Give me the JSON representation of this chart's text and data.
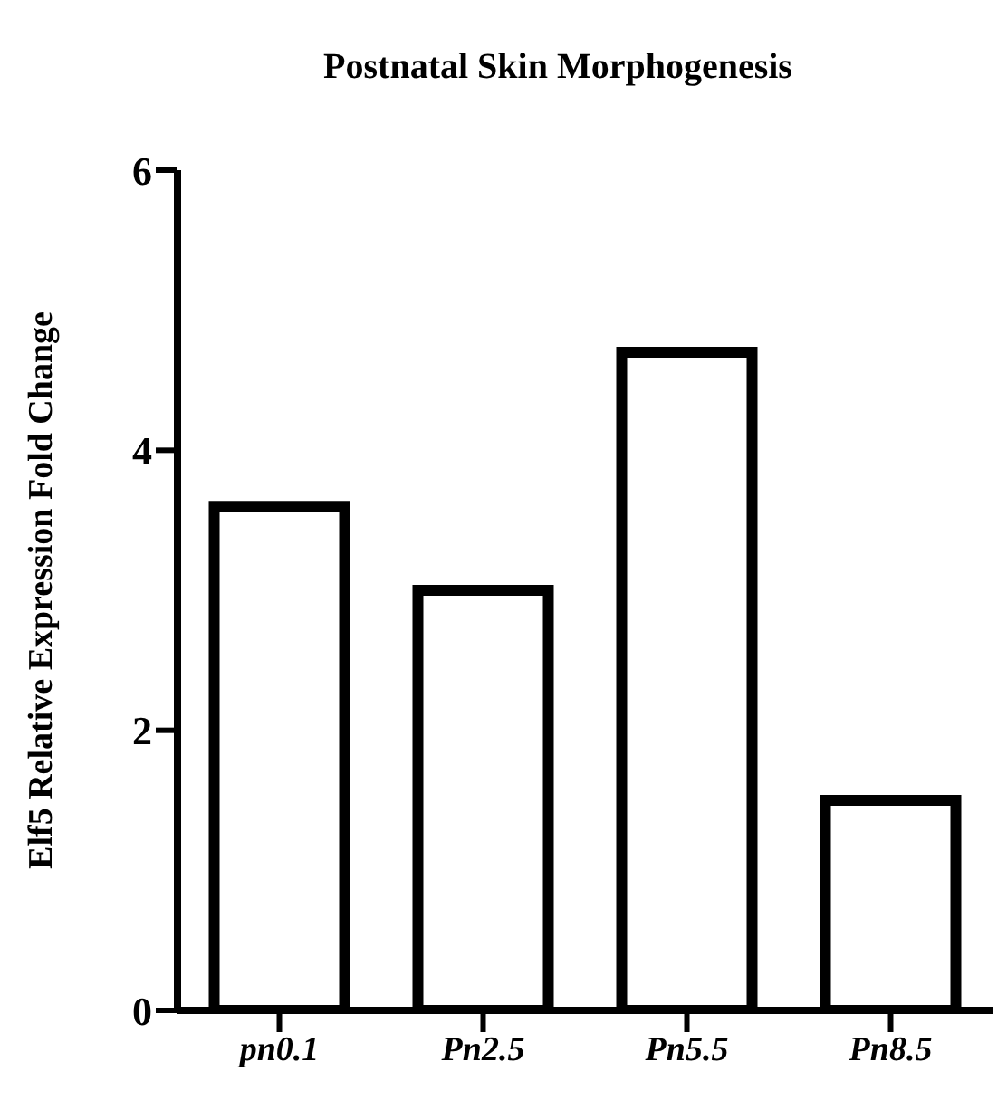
{
  "chart_data": {
    "type": "bar",
    "title": "Postnatal Skin Morphogenesis",
    "ylabel": "Elf5 Relative Expression  Fold Change",
    "categories": [
      "pn0.1",
      "Pn2.5",
      "Pn5.5",
      "Pn8.5"
    ],
    "values": [
      3.6,
      3.0,
      4.7,
      1.5
    ],
    "color": "#000000",
    "ylim": [
      0,
      6
    ],
    "yticks": [
      0,
      2,
      4,
      6
    ],
    "grid": false
  }
}
